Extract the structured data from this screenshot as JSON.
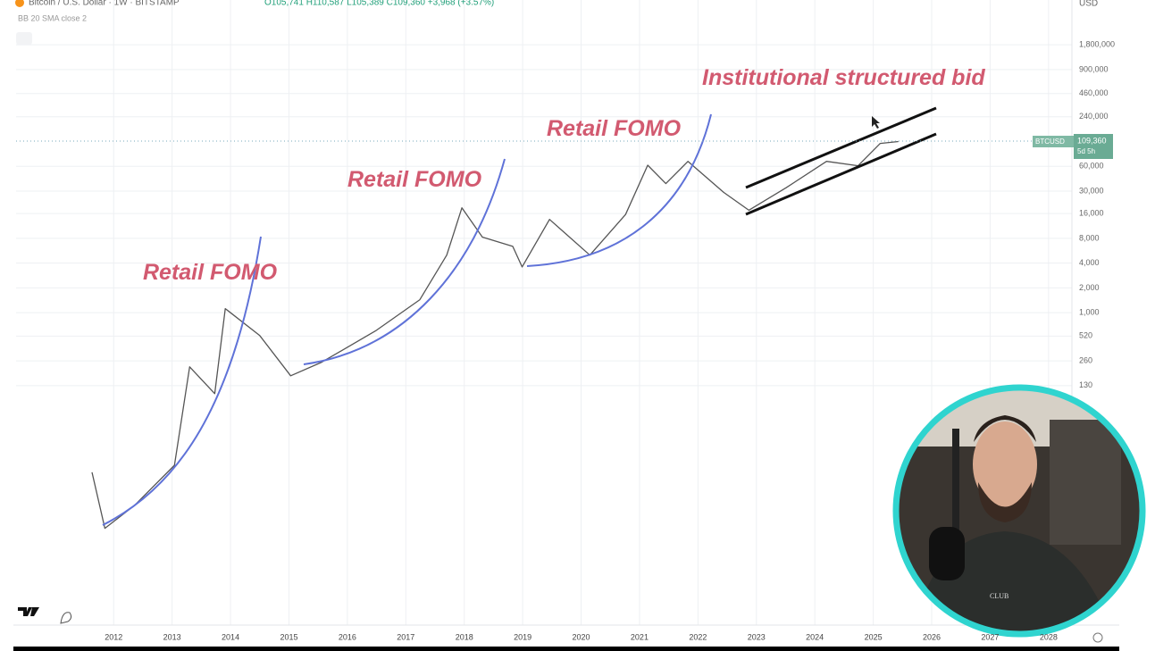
{
  "chart_data": {
    "type": "line",
    "header": {
      "symbol": "Bitcoin / U.S. Dollar · 1W · BITSTAMP",
      "ohlc": "O105,741 H110,587 L105,389 C109,360 +3,968 (+3.57%)",
      "indicator": "BB 20 SMA close 2"
    },
    "currency": "USD",
    "annotations": [
      "Retail FOMO",
      "Retail FOMO",
      "Retail FOMO",
      "Institutional structured bid"
    ],
    "price_label": {
      "symbol": "BTCUSD",
      "price": "109,360",
      "countdown": "5d 5h"
    },
    "x": [
      2011.63,
      2011.85,
      2012.35,
      2013.04,
      2013.3,
      2013.73,
      2013.91,
      2014.5,
      2015.03,
      2015.56,
      2016.48,
      2017.24,
      2017.7,
      2017.96,
      2018.31,
      2018.83,
      2018.99,
      2019.46,
      2020.15,
      2020.76,
      2021.14,
      2021.45,
      2021.83,
      2022.44,
      2022.87,
      2023.51,
      2024.2,
      2024.74,
      2025.12,
      2025.43
    ],
    "values": [
      11.5,
      2.4,
      4.5,
      14,
      220,
      104,
      1120,
      527,
      171,
      250,
      600,
      1440,
      5000,
      18800,
      8300,
      6400,
      3600,
      13600,
      5000,
      15600,
      62000,
      37000,
      69000,
      29000,
      17600,
      33000,
      69000,
      61000,
      114000,
      120000
    ],
    "color": "#555555",
    "log_scale": true,
    "grid": true,
    "xlim": [
      2010.33,
      2028.4
    ],
    "xticks": [
      2012,
      2013,
      2014,
      2015,
      2016,
      2017,
      2018,
      2019,
      2020,
      2021,
      2022,
      2023,
      2024,
      2025,
      2026,
      2027,
      2028
    ],
    "ylim": [
      0.16,
      6300000
    ],
    "yticks": [
      {
        "value": 1800000,
        "label": "1,800,000"
      },
      {
        "value": 900000,
        "label": "900,000"
      },
      {
        "value": 460000,
        "label": "460,000"
      },
      {
        "value": 240000,
        "label": "240,000"
      },
      {
        "value": 60000,
        "label": "60,000"
      },
      {
        "value": 30000,
        "label": "30,000"
      },
      {
        "value": 16000,
        "label": "16,000"
      },
      {
        "value": 8000,
        "label": "8,000"
      },
      {
        "value": 4000,
        "label": "4,000"
      },
      {
        "value": 2000,
        "label": "2,000"
      },
      {
        "value": 1000,
        "label": "1,000"
      },
      520,
      260,
      130
    ]
  }
}
